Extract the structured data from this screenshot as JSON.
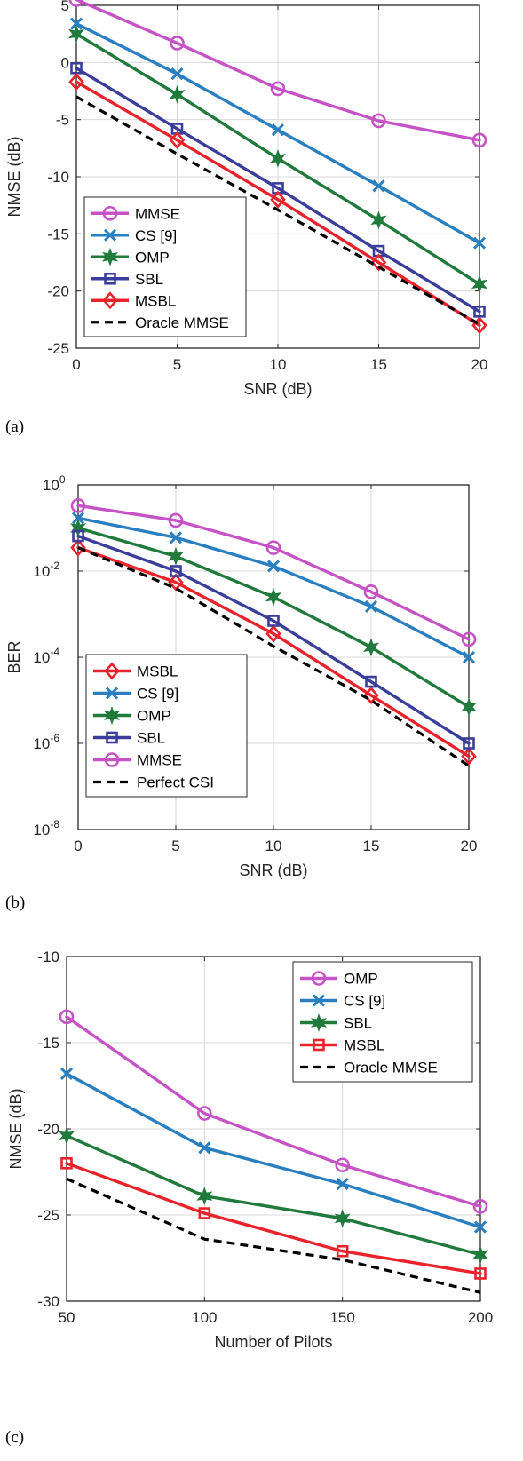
{
  "chart_data": [
    {
      "caption": "(a)",
      "type": "line",
      "xlabel": "SNR (dB)",
      "ylabel": "NMSE (dB)",
      "x": [
        0,
        5,
        10,
        15,
        20
      ],
      "xlim": [
        0,
        20
      ],
      "ylim": [
        -25,
        5
      ],
      "xticks": [
        0,
        5,
        10,
        15,
        20
      ],
      "yticks": [
        -25,
        -20,
        -15,
        -10,
        -5,
        0,
        5
      ],
      "yscale": "linear",
      "grid": true,
      "legend_position": "bottom-left",
      "series": [
        {
          "name": "MMSE",
          "values": [
            5.5,
            1.7,
            -2.3,
            -5.1,
            -6.8
          ],
          "color": "#c653c6",
          "marker": "circle",
          "dash": false
        },
        {
          "name": "CS [9]",
          "values": [
            3.4,
            -1.0,
            -5.9,
            -10.8,
            -15.8
          ],
          "color": "#2a7fc1",
          "marker": "x",
          "dash": false
        },
        {
          "name": "OMP",
          "values": [
            2.5,
            -2.8,
            -8.4,
            -13.8,
            -19.4
          ],
          "color": "#1f7a3b",
          "marker": "star",
          "dash": false
        },
        {
          "name": "SBL",
          "values": [
            -0.5,
            -5.8,
            -11.0,
            -16.5,
            -21.8
          ],
          "color": "#3a3d9a",
          "marker": "square",
          "dash": false
        },
        {
          "name": "MSBL",
          "values": [
            -1.7,
            -6.8,
            -12.0,
            -17.5,
            -23.0
          ],
          "color": "#e8232b",
          "marker": "diamond",
          "dash": false
        },
        {
          "name": "Oracle MMSE",
          "values": [
            -3.0,
            -8.0,
            -12.9,
            -17.9,
            -22.9
          ],
          "color": "#000000",
          "marker": "none",
          "dash": true
        }
      ]
    },
    {
      "caption": "(b)",
      "type": "line",
      "xlabel": "SNR (dB)",
      "ylabel": "BER",
      "x": [
        0,
        5,
        10,
        15,
        20
      ],
      "xlim": [
        0,
        20
      ],
      "ylim": [
        1e-08,
        1
      ],
      "xticks": [
        0,
        5,
        10,
        15,
        20
      ],
      "ytick_labels": [
        {
          "base": "10",
          "exp": "0"
        },
        {
          "base": "10",
          "exp": "-2"
        },
        {
          "base": "10",
          "exp": "-4"
        },
        {
          "base": "10",
          "exp": "-6"
        },
        {
          "base": "10",
          "exp": "-8"
        }
      ],
      "yticks": [
        1,
        0.01,
        0.0001,
        1e-06,
        1e-08
      ],
      "yscale": "log",
      "grid": true,
      "legend_position": "bottom-left",
      "series": [
        {
          "name": "MSBL",
          "values": [
            0.035,
            0.0055,
            0.00035,
            1.3e-05,
            5e-07
          ],
          "color": "#e8232b",
          "marker": "diamond",
          "dash": false
        },
        {
          "name": "CS [9]",
          "values": [
            0.17,
            0.06,
            0.013,
            0.0015,
            0.0001
          ],
          "color": "#2a7fc1",
          "marker": "x",
          "dash": false
        },
        {
          "name": "OMP",
          "values": [
            0.1,
            0.022,
            0.0025,
            0.00017,
            7e-06
          ],
          "color": "#1f7a3b",
          "marker": "star",
          "dash": false
        },
        {
          "name": "SBL",
          "values": [
            0.065,
            0.01,
            0.0007,
            2.7e-05,
            1e-06
          ],
          "color": "#3a3d9a",
          "marker": "square",
          "dash": false
        },
        {
          "name": "MMSE",
          "values": [
            0.33,
            0.15,
            0.035,
            0.0033,
            0.00026
          ],
          "color": "#c653c6",
          "marker": "circle",
          "dash": false
        },
        {
          "name": "Perfect CSI",
          "values": [
            0.035,
            0.004,
            0.00018,
            1e-05,
            3e-07
          ],
          "color": "#000000",
          "marker": "none",
          "dash": true
        }
      ]
    },
    {
      "caption": "(c)",
      "type": "line",
      "xlabel": "Number of Pilots",
      "ylabel": "NMSE (dB)",
      "x": [
        50,
        100,
        150,
        200
      ],
      "xlim": [
        50,
        200
      ],
      "ylim": [
        -30,
        -10
      ],
      "xticks": [
        50,
        100,
        150,
        200
      ],
      "yticks": [
        -30,
        -25,
        -20,
        -15,
        -10
      ],
      "yscale": "linear",
      "grid": true,
      "legend_position": "top-right",
      "series": [
        {
          "name": "OMP",
          "values": [
            -13.5,
            -19.1,
            -22.1,
            -24.5
          ],
          "color": "#c653c6",
          "marker": "circle",
          "dash": false
        },
        {
          "name": "CS [9]",
          "values": [
            -16.8,
            -21.1,
            -23.2,
            -25.7
          ],
          "color": "#2a7fc1",
          "marker": "x",
          "dash": false
        },
        {
          "name": "SBL",
          "values": [
            -20.4,
            -23.9,
            -25.2,
            -27.3
          ],
          "color": "#1f7a3b",
          "marker": "star",
          "dash": false
        },
        {
          "name": "MSBL",
          "values": [
            -22.0,
            -24.9,
            -27.1,
            -28.4
          ],
          "color": "#e8232b",
          "marker": "square",
          "dash": false
        },
        {
          "name": "Oracle MMSE",
          "values": [
            -22.9,
            -26.4,
            -27.6,
            -29.5
          ],
          "color": "#000000",
          "marker": "none",
          "dash": true
        }
      ]
    }
  ]
}
